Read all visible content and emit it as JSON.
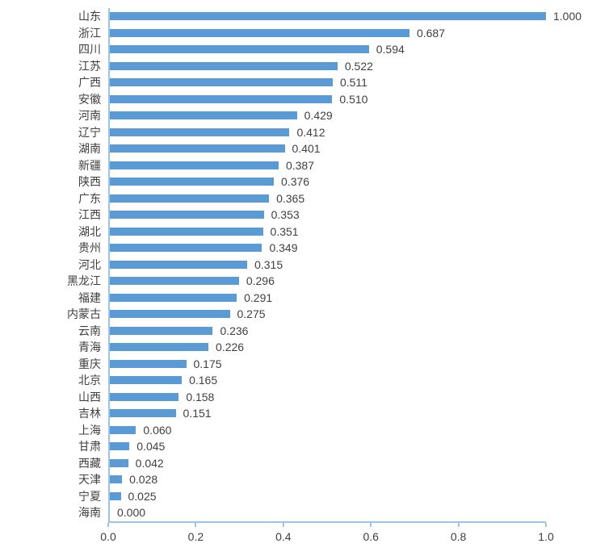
{
  "chart_data": {
    "type": "bar",
    "orientation": "horizontal",
    "title": "",
    "xlabel": "",
    "ylabel": "",
    "categories": [
      "山东",
      "浙江",
      "四川",
      "江苏",
      "广西",
      "安徽",
      "河南",
      "辽宁",
      "湖南",
      "新疆",
      "陕西",
      "广东",
      "江西",
      "湖北",
      "贵州",
      "河北",
      "黑龙江",
      "福建",
      "内蒙古",
      "云南",
      "青海",
      "重庆",
      "北京",
      "山西",
      "吉林",
      "上海",
      "甘肃",
      "西藏",
      "天津",
      "宁夏",
      "海南"
    ],
    "values": [
      1.0,
      0.687,
      0.594,
      0.522,
      0.511,
      0.51,
      0.429,
      0.412,
      0.401,
      0.387,
      0.376,
      0.365,
      0.353,
      0.351,
      0.349,
      0.315,
      0.296,
      0.291,
      0.275,
      0.236,
      0.226,
      0.175,
      0.165,
      0.158,
      0.151,
      0.06,
      0.045,
      0.042,
      0.028,
      0.025,
      0.0
    ],
    "value_labels": [
      "1.000",
      "0.687",
      "0.594",
      "0.522",
      "0.511",
      "0.510",
      "0.429",
      "0.412",
      "0.401",
      "0.387",
      "0.376",
      "0.365",
      "0.353",
      "0.351",
      "0.349",
      "0.315",
      "0.296",
      "0.291",
      "0.275",
      "0.236",
      "0.226",
      "0.175",
      "0.165",
      "0.158",
      "0.151",
      "0.060",
      "0.045",
      "0.042",
      "0.028",
      "0.025",
      "0.000"
    ],
    "xlim": [
      0.0,
      1.0
    ],
    "x_ticks": [
      "0.0",
      "0.2",
      "0.4",
      "0.6",
      "0.8",
      "1.0"
    ],
    "grid": false,
    "legend": "none",
    "bar_color": "#5B9BD5",
    "axis_color": "#9DC3E6",
    "text_color": "#404040"
  }
}
